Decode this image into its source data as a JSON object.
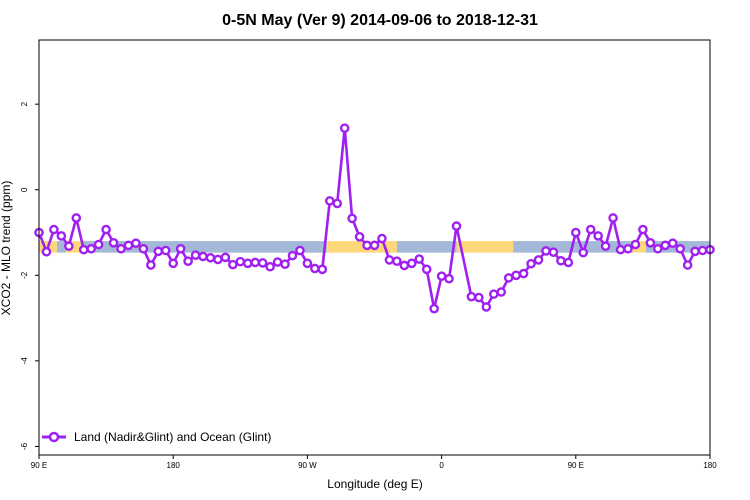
{
  "chart_data": {
    "type": "line",
    "title": "0-5N May (Ver 9)   2014-09-06 to 2018-12-31",
    "xlabel": "Longitude (deg E)",
    "ylabel": "XCO2 - MLO trend (ppm)",
    "x_ticks": [
      {
        "value": 90,
        "label": "90 E"
      },
      {
        "value": 180,
        "label": "180"
      },
      {
        "value": 270,
        "label": "90 W"
      },
      {
        "value": 360,
        "label": "0"
      },
      {
        "value": 450,
        "label": "90 E"
      },
      {
        "value": 540,
        "label": "180"
      }
    ],
    "y_ticks": [
      {
        "value": 2,
        "label": "2"
      },
      {
        "value": 0,
        "label": "0"
      },
      {
        "value": -2,
        "label": "-2"
      },
      {
        "value": -4,
        "label": "-4"
      },
      {
        "value": -6,
        "label": "-6"
      }
    ],
    "xlim": [
      90,
      540
    ],
    "ylim": [
      -6.2,
      3.5
    ],
    "grid": false,
    "legend_position": "bottom-left",
    "series": [
      {
        "name": "Land (Nadir&Glint) and Ocean (Glint)",
        "color": "#a020f0",
        "x": [
          90,
          95,
          100,
          105,
          110,
          115,
          120,
          125,
          130,
          135,
          140,
          145,
          150,
          155,
          160,
          165,
          170,
          175,
          180,
          185,
          190,
          195,
          200,
          205,
          210,
          215,
          220,
          225,
          230,
          235,
          240,
          245,
          250,
          255,
          260,
          265,
          270,
          275,
          280,
          285,
          290,
          295,
          300,
          305,
          310,
          315,
          320,
          325,
          330,
          335,
          340,
          345,
          350,
          355,
          360,
          365,
          370,
          380,
          385,
          390,
          395,
          400,
          405,
          410,
          415,
          420,
          425,
          430,
          435,
          440,
          445,
          450,
          455,
          460,
          465,
          470,
          475,
          480,
          485,
          490,
          495,
          500,
          505,
          510,
          515,
          520,
          525,
          530,
          535,
          540
        ],
        "y": [
          -1.0,
          -1.45,
          -0.93,
          -1.08,
          -1.32,
          -0.66,
          -1.4,
          -1.38,
          -1.28,
          -0.93,
          -1.24,
          -1.38,
          -1.3,
          -1.25,
          -1.38,
          -1.76,
          -1.44,
          -1.42,
          -1.72,
          -1.38,
          -1.67,
          -1.53,
          -1.56,
          -1.59,
          -1.63,
          -1.58,
          -1.75,
          -1.68,
          -1.72,
          -1.7,
          -1.71,
          -1.8,
          -1.69,
          -1.74,
          -1.54,
          -1.42,
          -1.72,
          -1.84,
          -1.86,
          -0.26,
          -0.32,
          1.44,
          -0.67,
          -1.1,
          -1.3,
          -1.3,
          -1.14,
          -1.64,
          -1.67,
          -1.77,
          -1.72,
          -1.62,
          -1.86,
          -2.78,
          -2.02,
          -2.08,
          -0.85,
          -2.5,
          -2.52,
          -2.74,
          -2.44,
          -2.39,
          -2.06,
          -2.0,
          -1.96,
          -1.73,
          -1.64,
          -1.43,
          -1.46,
          -1.66,
          -1.7,
          -1.0,
          -1.47,
          -0.93,
          -1.08,
          -1.32,
          -0.66,
          -1.4,
          -1.38,
          -1.28,
          -0.93,
          -1.24,
          -1.38,
          -1.3,
          -1.25,
          -1.38,
          -1.76,
          -1.44,
          -1.42,
          -1.4
        ]
      }
    ],
    "background_band": {
      "y_range": [
        -1.47,
        -1.2
      ],
      "segments": [
        {
          "from": 90,
          "to": 102,
          "surface": "land"
        },
        {
          "from": 102,
          "to": 108,
          "surface": "ocean"
        },
        {
          "from": 108,
          "to": 118,
          "surface": "land"
        },
        {
          "from": 118,
          "to": 283,
          "surface": "ocean"
        },
        {
          "from": 283,
          "to": 330,
          "surface": "land"
        },
        {
          "from": 330,
          "to": 370,
          "surface": "ocean"
        },
        {
          "from": 370,
          "to": 408,
          "surface": "land"
        },
        {
          "from": 408,
          "to": 488,
          "surface": "ocean"
        },
        {
          "from": 488,
          "to": 497,
          "surface": "land"
        },
        {
          "from": 497,
          "to": 540,
          "surface": "ocean"
        }
      ],
      "colors": {
        "land": "#fdd87a",
        "ocean": "#a4b9d8"
      }
    }
  }
}
